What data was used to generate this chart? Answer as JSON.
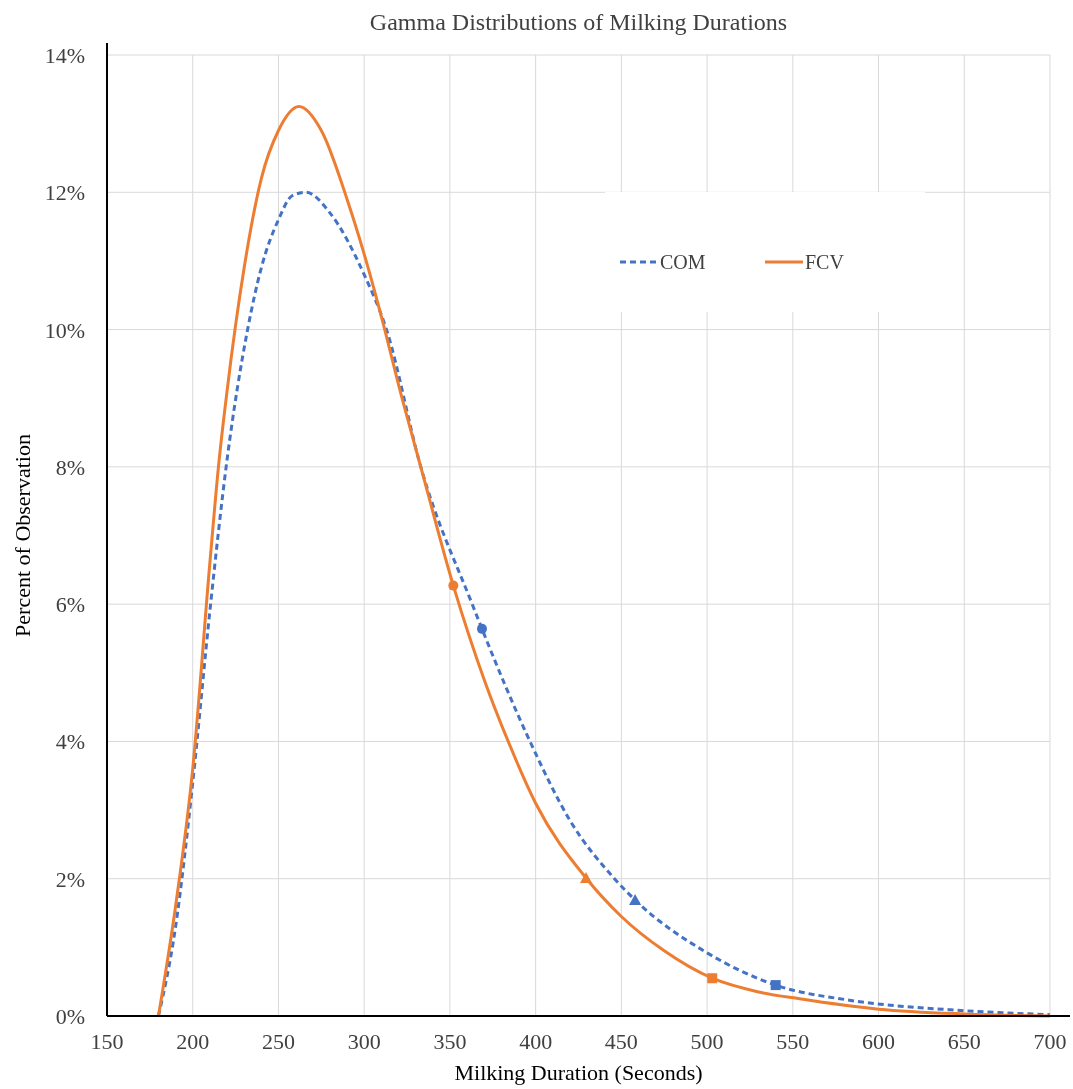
{
  "chart_data": {
    "type": "line",
    "title": "Gamma Distributions of Milking Durations",
    "xlabel": "Milking Duration (Seconds)",
    "ylabel": "Percent of Observation",
    "xlim": [
      150,
      700
    ],
    "xticks": [
      150,
      200,
      250,
      300,
      350,
      400,
      450,
      500,
      550,
      600,
      650,
      700
    ],
    "ylim": [
      0,
      14
    ],
    "yticks": [
      {
        "value": 0,
        "label": "0%"
      },
      {
        "value": 2,
        "label": "2%"
      },
      {
        "value": 4,
        "label": "4%"
      },
      {
        "value": 6,
        "label": "6%"
      },
      {
        "value": 8,
        "label": "8%"
      },
      {
        "value": 10,
        "label": "10%"
      },
      {
        "value": 12,
        "label": "12%"
      },
      {
        "value": 14,
        "label": "14%"
      }
    ],
    "grid": true,
    "legend": "top right",
    "series": [
      {
        "name": "COM",
        "color": "#4472c4",
        "line_style": "dashed",
        "marker": "none",
        "x": [
          180,
          190,
          200,
          210,
          220,
          232,
          240,
          250,
          258,
          266,
          280,
          300,
          313,
          333,
          363,
          368.7,
          396.7,
          420,
          446,
          458,
          500,
          540,
          583,
          642,
          700
        ],
        "values": [
          0,
          1.3,
          3.4,
          5.9,
          8.1,
          10.0,
          10.9,
          11.6,
          11.95,
          12.0,
          11.7,
          10.8,
          10.0,
          8.0,
          6.0,
          5.64,
          4.0,
          2.85,
          2.0,
          1.69,
          0.92,
          0.45,
          0.23,
          0.09,
          0.02
        ]
      },
      {
        "name": "FCV",
        "color": "#ed7d31",
        "line_style": "solid",
        "marker": "none",
        "x": [
          180,
          190,
          200,
          210,
          215,
          220,
          230,
          240,
          250,
          262,
          275,
          290,
          300,
          312,
          320,
          333,
          352,
          370,
          384,
          400,
          429.4,
          450,
          475,
          503,
          530,
          554,
          600,
          650,
          700
        ],
        "values": [
          0,
          1.6,
          3.6,
          6.6,
          8.0,
          9.1,
          10.9,
          12.2,
          12.9,
          13.25,
          12.9,
          11.9,
          11.1,
          10.0,
          9.2,
          8.0,
          6.27,
          4.9,
          4.0,
          3.1,
          2.01,
          1.45,
          0.95,
          0.55,
          0.35,
          0.25,
          0.1,
          0.03,
          0
        ]
      },
      {
        "type": "scatter",
        "color": "#4472c4",
        "marker": "circle",
        "x": [
          368.7
        ],
        "values": [
          5.64
        ]
      },
      {
        "type": "scatter",
        "color": "#ed7d31",
        "marker": "circle",
        "x": [
          352
        ],
        "values": [
          6.27
        ]
      },
      {
        "type": "scatter",
        "color": "#4472c4",
        "marker": "triangle",
        "x": [
          458
        ],
        "values": [
          1.69
        ]
      },
      {
        "type": "scatter",
        "color": "#ed7d31",
        "marker": "triangle",
        "x": [
          429.4
        ],
        "values": [
          2.01
        ]
      },
      {
        "type": "scatter",
        "color": "#4472c4",
        "marker": "square",
        "x": [
          540
        ],
        "values": [
          0.45
        ]
      },
      {
        "type": "scatter",
        "color": "#ed7d31",
        "marker": "square",
        "x": [
          503
        ],
        "values": [
          0.55
        ]
      }
    ]
  }
}
